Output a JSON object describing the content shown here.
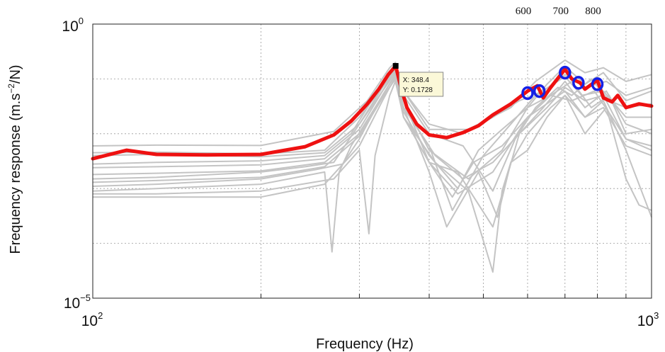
{
  "chart_data": {
    "type": "line",
    "xscale": "log",
    "yscale": "log",
    "xlim": [
      100,
      1000
    ],
    "ylim": [
      1e-05,
      1
    ],
    "xlabel": "Frequency (Hz)",
    "ylabel_main": "Frequency response (m.s",
    "ylabel_sup": "−2",
    "ylabel_end": "/N)",
    "ytick_top": {
      "base": "10",
      "exp": "0"
    },
    "ytick_bottom": {
      "base": "10",
      "exp": "−5"
    },
    "xtick_left": {
      "base": "10",
      "exp": "2"
    },
    "xtick_right": {
      "base": "10",
      "exp": "3"
    },
    "grid": true,
    "top_annotations": [
      "600",
      "700",
      "800"
    ],
    "datatip": {
      "x_label": "X: 348.4",
      "y_label": "Y: 0.1728",
      "x": 348.4,
      "y": 0.1728
    },
    "colors": {
      "mean": "#ee1111",
      "samples": "#c4c4c4",
      "markers": "#1420e6",
      "datatip_bg": "#fbf8d8"
    },
    "mean_series": {
      "x": [
        100,
        115,
        130,
        160,
        200,
        240,
        270,
        290,
        310,
        325,
        338,
        348.4,
        356,
        365,
        380,
        400,
        430,
        460,
        490,
        520,
        560,
        600,
        625,
        640,
        660,
        700,
        720,
        745,
        760,
        800,
        820,
        850,
        870,
        900,
        950,
        1000
      ],
      "y": [
        0.0035,
        0.005,
        0.0042,
        0.0041,
        0.0042,
        0.0058,
        0.0095,
        0.017,
        0.035,
        0.065,
        0.12,
        0.1728,
        0.07,
        0.03,
        0.015,
        0.0095,
        0.0085,
        0.0105,
        0.014,
        0.022,
        0.035,
        0.06,
        0.075,
        0.045,
        0.07,
        0.15,
        0.1,
        0.085,
        0.065,
        0.095,
        0.045,
        0.038,
        0.05,
        0.03,
        0.035,
        0.032
      ]
    },
    "peak_markers": {
      "x": [
        600,
        630,
        700,
        740,
        800
      ],
      "y": [
        0.055,
        0.06,
        0.13,
        0.085,
        0.08
      ]
    },
    "sample_series": [
      {
        "x": [
          100,
          130,
          200,
          270,
          310,
          340,
          348,
          360,
          400,
          470,
          560,
          620,
          700,
          760,
          820,
          900,
          1000
        ],
        "y": [
          0.006,
          0.0062,
          0.0061,
          0.011,
          0.04,
          0.16,
          0.2,
          0.06,
          0.012,
          0.012,
          0.03,
          0.09,
          0.22,
          0.13,
          0.16,
          0.09,
          0.12
        ]
      },
      {
        "x": [
          100,
          130,
          200,
          260,
          300,
          330,
          348,
          360,
          400,
          470,
          540,
          600,
          650,
          700,
          760,
          820,
          900,
          1000
        ],
        "y": [
          0.0045,
          0.0046,
          0.0043,
          0.005,
          0.02,
          0.07,
          0.17,
          0.04,
          0.005,
          0.0015,
          0.005,
          0.03,
          0.08,
          0.17,
          0.08,
          0.13,
          0.04,
          0.06
        ]
      },
      {
        "x": [
          100,
          130,
          200,
          260,
          290,
          320,
          348,
          360,
          400,
          440,
          500,
          560,
          620,
          700,
          750,
          820,
          900,
          1000
        ],
        "y": [
          0.0028,
          0.003,
          0.0032,
          0.004,
          0.01,
          0.05,
          0.14,
          0.03,
          0.006,
          0.0004,
          0.004,
          0.015,
          0.05,
          0.11,
          0.05,
          0.06,
          0.02,
          0.02
        ]
      },
      {
        "x": [
          100,
          130,
          200,
          240,
          270,
          300,
          330,
          348,
          360,
          400,
          450,
          520,
          580,
          650,
          700,
          760,
          820,
          900,
          1000
        ],
        "y": [
          0.0015,
          0.0016,
          0.002,
          0.0025,
          0.003,
          0.015,
          0.06,
          0.15,
          0.04,
          0.003,
          0.002,
          0.0002,
          0.01,
          0.03,
          0.07,
          0.04,
          0.05,
          0.008,
          0.006
        ]
      },
      {
        "x": [
          100,
          130,
          200,
          250,
          280,
          300,
          330,
          348,
          360,
          410,
          460,
          520,
          580,
          640,
          700,
          760,
          830,
          900,
          1000
        ],
        "y": [
          0.0011,
          0.0012,
          0.0015,
          0.0022,
          0.0028,
          0.008,
          0.05,
          0.12,
          0.03,
          0.004,
          0.0015,
          0.003,
          0.01,
          0.03,
          0.09,
          0.03,
          0.06,
          0.015,
          0.01
        ]
      },
      {
        "x": [
          100,
          130,
          200,
          260,
          268,
          276,
          290,
          320,
          348,
          360,
          400,
          450,
          520,
          600,
          700,
          760,
          820,
          900,
          1000
        ],
        "y": [
          0.0009,
          0.001,
          0.0012,
          0.002,
          7e-05,
          0.002,
          0.006,
          0.03,
          0.1,
          0.02,
          0.003,
          0.0008,
          0.002,
          0.02,
          0.06,
          0.02,
          0.04,
          0.005,
          0.0003
        ]
      },
      {
        "x": [
          100,
          130,
          200,
          270,
          300,
          312,
          320,
          340,
          348,
          360,
          410,
          470,
          520,
          540,
          560,
          600,
          660,
          700,
          760,
          820,
          900,
          1000
        ],
        "y": [
          0.0008,
          0.0008,
          0.0009,
          0.0015,
          0.005,
          0.00015,
          0.004,
          0.05,
          0.09,
          0.02,
          0.003,
          0.0009,
          3e-05,
          0.0009,
          0.003,
          0.01,
          0.03,
          0.05,
          0.02,
          0.03,
          0.006,
          0.004
        ]
      },
      {
        "x": [
          100,
          130,
          200,
          260,
          300,
          330,
          348,
          360,
          400,
          430,
          490,
          530,
          560,
          600,
          650,
          700,
          760,
          830,
          900,
          950,
          1000
        ],
        "y": [
          0.0007,
          0.0007,
          0.0007,
          0.0012,
          0.006,
          0.04,
          0.11,
          0.03,
          0.002,
          0.0002,
          0.002,
          0.0003,
          0.003,
          0.005,
          0.02,
          0.05,
          0.01,
          0.03,
          0.0015,
          0.0005,
          0.0004
        ]
      },
      {
        "x": [
          100,
          130,
          200,
          260,
          300,
          330,
          348,
          360,
          400,
          460,
          520,
          570,
          620,
          680,
          720,
          780,
          840,
          900,
          1000
        ],
        "y": [
          0.0024,
          0.0025,
          0.0027,
          0.0035,
          0.012,
          0.06,
          0.13,
          0.05,
          0.01,
          0.006,
          0.0009,
          0.008,
          0.03,
          0.07,
          0.05,
          0.1,
          0.04,
          0.03,
          0.035
        ]
      },
      {
        "x": [
          100,
          130,
          200,
          260,
          300,
          330,
          348,
          360,
          400,
          460,
          520,
          580,
          640,
          700,
          760,
          830,
          900,
          1000
        ],
        "y": [
          0.004,
          0.0042,
          0.0038,
          0.0045,
          0.015,
          0.07,
          0.15,
          0.06,
          0.015,
          0.01,
          0.02,
          0.04,
          0.06,
          0.12,
          0.07,
          0.09,
          0.05,
          0.07
        ]
      },
      {
        "x": [
          100,
          130,
          200,
          260,
          300,
          330,
          348,
          360,
          400,
          450,
          490,
          540,
          600,
          660,
          720,
          790,
          850,
          900,
          1000
        ],
        "y": [
          0.0018,
          0.0019,
          0.0021,
          0.003,
          0.01,
          0.05,
          0.12,
          0.025,
          0.004,
          0.001,
          0.005,
          0.012,
          0.03,
          0.05,
          0.04,
          0.06,
          0.02,
          0.008,
          0.005
        ]
      },
      {
        "x": [
          100,
          130,
          200,
          260,
          300,
          330,
          348,
          360,
          400,
          440,
          480,
          540,
          600,
          660,
          720,
          780,
          840,
          900,
          1000
        ],
        "y": [
          0.0013,
          0.0014,
          0.0016,
          0.0025,
          0.009,
          0.045,
          0.1,
          0.02,
          0.003,
          0.0007,
          0.003,
          0.006,
          0.02,
          0.05,
          0.09,
          0.03,
          0.05,
          0.01,
          0.012
        ]
      }
    ]
  }
}
